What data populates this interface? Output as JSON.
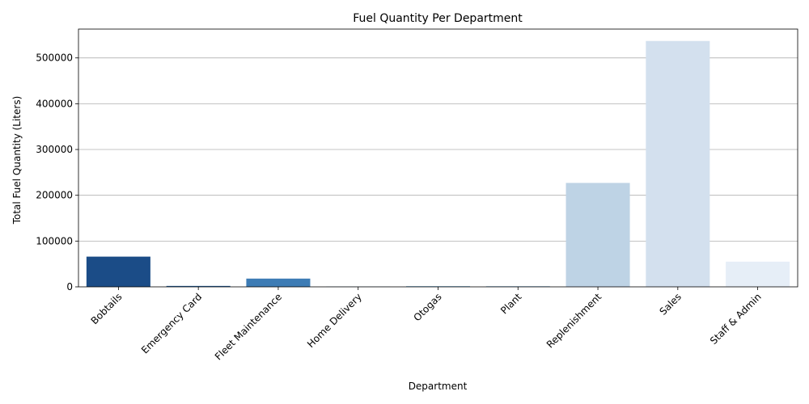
{
  "chart_data": {
    "type": "bar",
    "title": "Fuel Quantity Per Department",
    "xlabel": "Department",
    "ylabel": "Total Fuel Quantity (Liters)",
    "categories": [
      "Bobtails",
      "Emergency Card",
      "Fleet Maintenance",
      "Home Delivery",
      "Otogas",
      "Plant",
      "Replenishment",
      "Sales",
      "Staff & Admin"
    ],
    "values": [
      66000,
      2000,
      18000,
      500,
      1500,
      1500,
      227000,
      537000,
      55000
    ],
    "colors": [
      "#1b4c87",
      "#215e99",
      "#3d7cb5",
      "#5a98c8",
      "#7fb1d6",
      "#9fc5e0",
      "#bed3e5",
      "#d3e0ee",
      "#e6eef7"
    ],
    "ylim": [
      0,
      563000
    ],
    "yticks": [
      0,
      100000,
      200000,
      300000,
      400000,
      500000
    ],
    "grid": "y"
  }
}
